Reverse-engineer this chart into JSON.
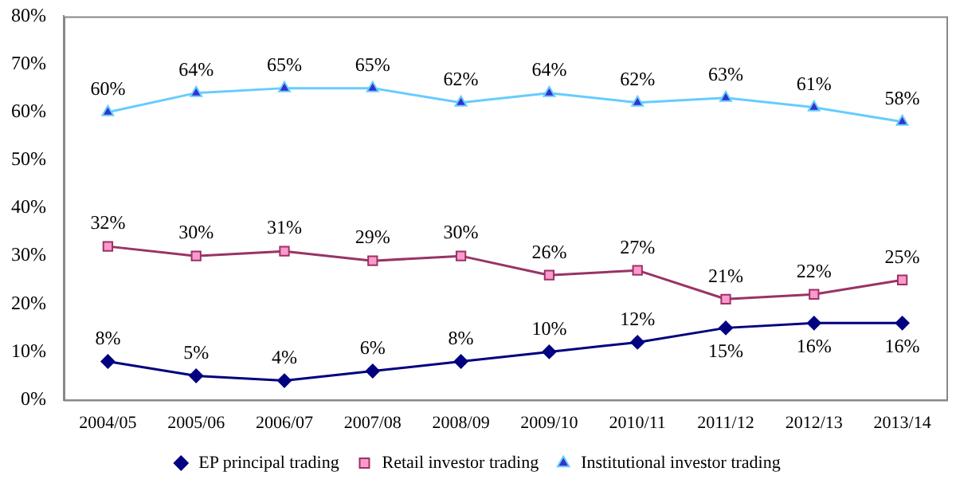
{
  "chart_data": {
    "type": "line",
    "categories": [
      "2004/05",
      "2005/06",
      "2006/07",
      "2007/08",
      "2008/09",
      "2009/10",
      "2010/11",
      "2011/12",
      "2012/13",
      "2013/14"
    ],
    "series": [
      {
        "name": "EP principal trading",
        "color": "#000080",
        "marker": "diamond",
        "values": [
          8,
          5,
          4,
          6,
          8,
          10,
          12,
          15,
          16,
          16
        ],
        "value_labels": [
          "8%",
          "5%",
          "4%",
          "6%",
          "8%",
          "10%",
          "12%",
          "15%",
          "16%",
          "16%"
        ]
      },
      {
        "name": "Retail investor trading",
        "color": "#993366",
        "marker": "square",
        "values": [
          32,
          30,
          31,
          29,
          30,
          26,
          27,
          21,
          22,
          25
        ],
        "value_labels": [
          "32%",
          "30%",
          "31%",
          "29%",
          "30%",
          "26%",
          "27%",
          "21%",
          "22%",
          "25%"
        ]
      },
      {
        "name": "Institutional investor trading",
        "color": "#66ccff",
        "marker": "triangle",
        "values": [
          60,
          64,
          65,
          65,
          62,
          64,
          62,
          63,
          61,
          58
        ],
        "value_labels": [
          "60%",
          "64%",
          "65%",
          "65%",
          "62%",
          "64%",
          "62%",
          "63%",
          "61%",
          "58%"
        ]
      }
    ],
    "ylim": [
      0,
      80
    ],
    "yticks": [
      {
        "value": 0,
        "label": "0%"
      },
      {
        "value": 10,
        "label": "10%"
      },
      {
        "value": 20,
        "label": "20%"
      },
      {
        "value": 30,
        "label": "30%"
      },
      {
        "value": 40,
        "label": "40%"
      },
      {
        "value": 50,
        "label": "50%"
      },
      {
        "value": 60,
        "label": "60%"
      },
      {
        "value": 70,
        "label": "70%"
      },
      {
        "value": 80,
        "label": "80%"
      }
    ],
    "grid": false,
    "legend": "bottom"
  }
}
